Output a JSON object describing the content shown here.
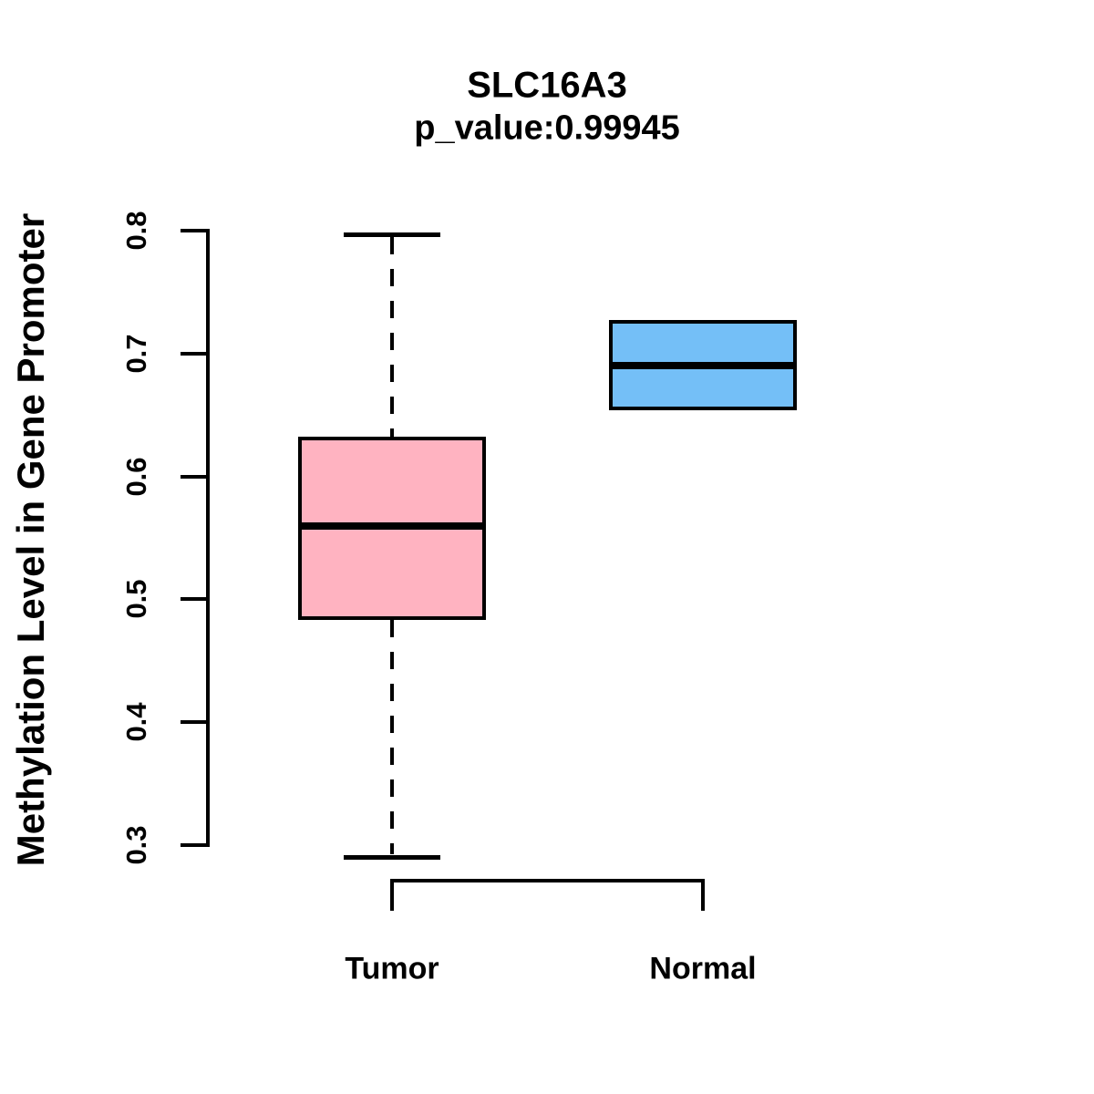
{
  "chart_data": {
    "type": "boxplot",
    "title": "SLC16A3",
    "subtitle": "p_value:0.99945",
    "ylabel": "Methylation Level in Gene Promoter",
    "xlabel": "",
    "ylim": [
      0.3,
      0.8
    ],
    "yticks": [
      0.8,
      0.7,
      0.6,
      0.5,
      0.4,
      0.3
    ],
    "ytick_labels": [
      "0.8",
      "0.7",
      "0.6",
      "0.5",
      "0.4",
      "0.3"
    ],
    "grid": false,
    "legend": "none",
    "groups": [
      {
        "label": "Tumor",
        "color": "#FFB3C1",
        "min": 0.29,
        "q1": 0.483,
        "median": 0.56,
        "q3": 0.632,
        "max": 0.797
      },
      {
        "label": "Normal",
        "color": "#74BFF7",
        "min": 0.654,
        "q1": 0.654,
        "median": 0.69,
        "q3": 0.727,
        "max": 0.727
      }
    ],
    "colors": {
      "box_border": "#000000",
      "median_line": "#000000",
      "axis": "#000000",
      "text": "#000000",
      "background": "#ffffff"
    }
  }
}
